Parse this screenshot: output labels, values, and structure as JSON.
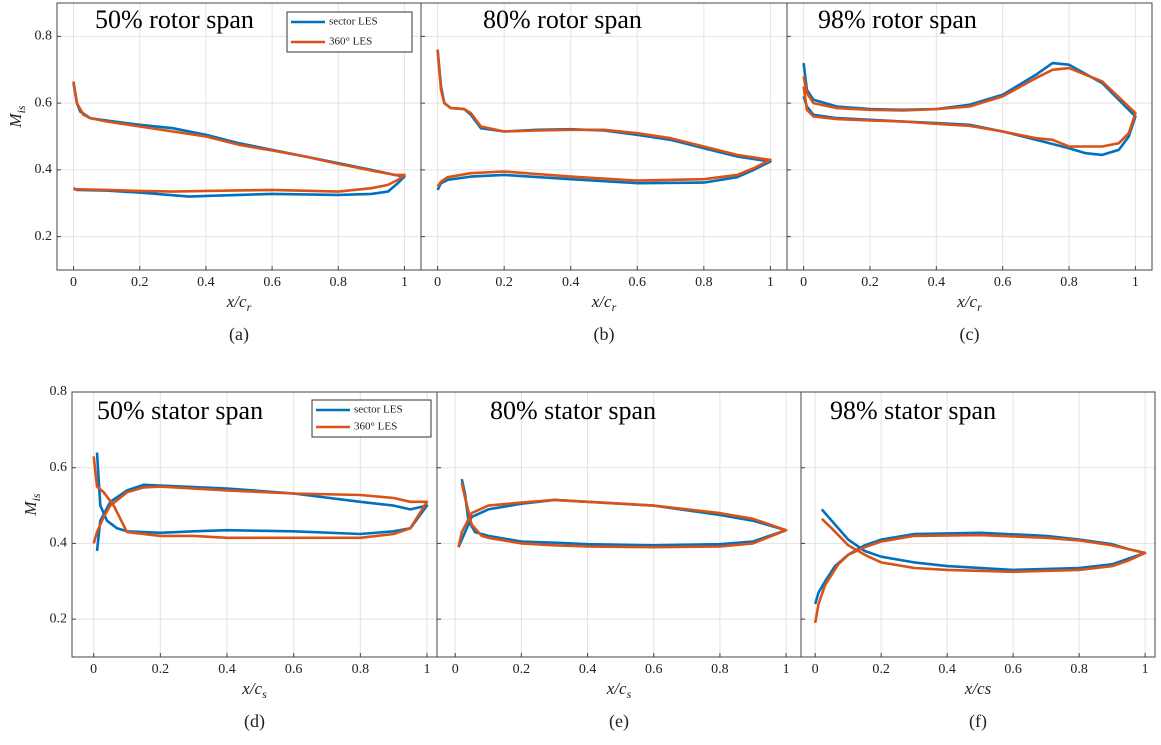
{
  "chart_data": [
    {
      "type": "line",
      "title": "50% rotor span",
      "xlabel": "x/c",
      "xlabel_sub": "r",
      "ylabel": "M",
      "ylabel_sub": "is",
      "caption": "(a)",
      "grid": true,
      "legend": "upper right",
      "xlim": [
        -0.05,
        1.05
      ],
      "ylim": [
        0.1,
        0.9
      ],
      "xticks": [
        0,
        0.2,
        0.4,
        0.6,
        0.8,
        1
      ],
      "yticks": [
        0.2,
        0.4,
        0.6,
        0.8
      ],
      "series": [
        {
          "name": "sector LES",
          "color": "#0072BD",
          "x": [
            0,
            0.01,
            0.02,
            0.05,
            0.1,
            0.2,
            0.3,
            0.4,
            0.5,
            0.6,
            0.7,
            0.8,
            0.9,
            0.97,
            1,
            0.98,
            0.95,
            0.9,
            0.8,
            0.6,
            0.4,
            0.35,
            0.2,
            0.1,
            0.01,
            0
          ],
          "values": [
            0.66,
            0.6,
            0.575,
            0.555,
            0.548,
            0.535,
            0.525,
            0.505,
            0.48,
            0.46,
            0.44,
            0.42,
            0.4,
            0.385,
            0.38,
            0.36,
            0.335,
            0.328,
            0.325,
            0.328,
            0.322,
            0.32,
            0.332,
            0.338,
            0.34,
            0.345
          ]
        },
        {
          "name": "360° LES",
          "color": "#D95319",
          "x": [
            0,
            0.01,
            0.03,
            0.05,
            0.1,
            0.2,
            0.3,
            0.4,
            0.5,
            0.6,
            0.7,
            0.8,
            0.9,
            0.97,
            1,
            0.98,
            0.95,
            0.9,
            0.8,
            0.6,
            0.4,
            0.3,
            0.2,
            0.1,
            0
          ],
          "values": [
            0.665,
            0.6,
            0.565,
            0.555,
            0.545,
            0.53,
            0.515,
            0.5,
            0.475,
            0.458,
            0.44,
            0.418,
            0.398,
            0.385,
            0.385,
            0.37,
            0.355,
            0.345,
            0.335,
            0.34,
            0.337,
            0.335,
            0.337,
            0.34,
            0.342
          ]
        }
      ]
    },
    {
      "type": "line",
      "title": "80% rotor span",
      "xlabel": "x/c",
      "xlabel_sub": "r",
      "caption": "(b)",
      "grid": true,
      "xlim": [
        -0.05,
        1.05
      ],
      "ylim": [
        0.1,
        0.9
      ],
      "xticks": [
        0,
        0.2,
        0.4,
        0.6,
        0.8,
        1
      ],
      "yticks": [
        0.2,
        0.4,
        0.6,
        0.8
      ],
      "series": [
        {
          "color": "#0072BD",
          "x": [
            0,
            0.01,
            0.02,
            0.04,
            0.08,
            0.1,
            0.13,
            0.2,
            0.3,
            0.4,
            0.5,
            0.6,
            0.7,
            0.8,
            0.9,
            1,
            0.95,
            0.9,
            0.8,
            0.6,
            0.4,
            0.2,
            0.1,
            0.03,
            0.01,
            0
          ],
          "values": [
            0.76,
            0.65,
            0.6,
            0.585,
            0.582,
            0.565,
            0.525,
            0.515,
            0.52,
            0.522,
            0.518,
            0.505,
            0.49,
            0.465,
            0.44,
            0.425,
            0.4,
            0.378,
            0.362,
            0.36,
            0.372,
            0.385,
            0.38,
            0.37,
            0.36,
            0.34
          ]
        },
        {
          "color": "#D95319",
          "x": [
            0,
            0.01,
            0.02,
            0.04,
            0.08,
            0.1,
            0.13,
            0.2,
            0.3,
            0.4,
            0.5,
            0.6,
            0.7,
            0.8,
            0.9,
            1,
            0.95,
            0.9,
            0.8,
            0.6,
            0.4,
            0.2,
            0.1,
            0.03,
            0.01,
            0
          ],
          "values": [
            0.76,
            0.64,
            0.6,
            0.585,
            0.582,
            0.57,
            0.53,
            0.515,
            0.518,
            0.52,
            0.52,
            0.51,
            0.495,
            0.47,
            0.445,
            0.43,
            0.405,
            0.385,
            0.372,
            0.368,
            0.38,
            0.395,
            0.39,
            0.378,
            0.365,
            0.35
          ]
        }
      ]
    },
    {
      "type": "line",
      "title": "98% rotor span",
      "xlabel": "x/c",
      "xlabel_sub": "r",
      "caption": "(c)",
      "grid": true,
      "xlim": [
        -0.05,
        1.05
      ],
      "ylim": [
        0.1,
        0.9
      ],
      "xticks": [
        0,
        0.2,
        0.4,
        0.6,
        0.8,
        1
      ],
      "yticks": [
        0.2,
        0.4,
        0.6,
        0.8
      ],
      "series": [
        {
          "color": "#0072BD",
          "x": [
            0,
            0.01,
            0.03,
            0.1,
            0.2,
            0.3,
            0.4,
            0.5,
            0.6,
            0.7,
            0.75,
            0.8,
            0.9,
            1,
            0.98,
            0.95,
            0.9,
            0.85,
            0.8,
            0.7,
            0.6,
            0.5,
            0.4,
            0.3,
            0.2,
            0.1,
            0.03,
            0.01,
            0
          ],
          "values": [
            0.72,
            0.64,
            0.61,
            0.59,
            0.582,
            0.58,
            0.582,
            0.595,
            0.625,
            0.685,
            0.72,
            0.715,
            0.66,
            0.56,
            0.5,
            0.46,
            0.445,
            0.45,
            0.465,
            0.49,
            0.515,
            0.535,
            0.54,
            0.545,
            0.55,
            0.555,
            0.565,
            0.59,
            0.62
          ]
        },
        {
          "color": "#D95319",
          "x": [
            0,
            0.01,
            0.03,
            0.1,
            0.2,
            0.3,
            0.4,
            0.5,
            0.6,
            0.7,
            0.75,
            0.8,
            0.9,
            1,
            0.98,
            0.95,
            0.9,
            0.8,
            0.75,
            0.7,
            0.6,
            0.5,
            0.4,
            0.3,
            0.2,
            0.1,
            0.03,
            0.01,
            0
          ],
          "values": [
            0.68,
            0.63,
            0.6,
            0.585,
            0.58,
            0.578,
            0.582,
            0.59,
            0.62,
            0.675,
            0.7,
            0.705,
            0.665,
            0.57,
            0.51,
            0.48,
            0.47,
            0.47,
            0.49,
            0.495,
            0.515,
            0.532,
            0.538,
            0.545,
            0.548,
            0.552,
            0.56,
            0.58,
            0.65
          ]
        }
      ]
    },
    {
      "type": "line",
      "title": "50% stator span",
      "xlabel": "x/c",
      "xlabel_sub": "s",
      "ylabel": "M",
      "ylabel_sub": "is",
      "caption": "(d)",
      "grid": true,
      "legend": "upper right",
      "xlim": [
        -0.065,
        1.03
      ],
      "ylim": [
        0.1,
        0.8
      ],
      "xticks": [
        0,
        0.2,
        0.4,
        0.6,
        0.8,
        1
      ],
      "yticks": [
        0.2,
        0.4,
        0.6,
        0.8
      ],
      "series": [
        {
          "name": "sector LES",
          "color": "#0072BD",
          "x": [
            0.01,
            0.02,
            0.04,
            0.07,
            0.1,
            0.2,
            0.3,
            0.4,
            0.6,
            0.8,
            0.9,
            0.95,
            1,
            0.95,
            0.9,
            0.8,
            0.6,
            0.4,
            0.2,
            0.15,
            0.1,
            0.05,
            0.02,
            0.01
          ],
          "values": [
            0.64,
            0.5,
            0.46,
            0.44,
            0.432,
            0.428,
            0.432,
            0.435,
            0.432,
            0.425,
            0.432,
            0.44,
            0.5,
            0.49,
            0.5,
            0.51,
            0.532,
            0.545,
            0.553,
            0.555,
            0.54,
            0.51,
            0.46,
            0.38
          ]
        },
        {
          "name": "360° LES",
          "color": "#D95319",
          "x": [
            0,
            0.01,
            0.03,
            0.06,
            0.1,
            0.2,
            0.3,
            0.4,
            0.6,
            0.8,
            0.9,
            0.95,
            1,
            0.95,
            0.9,
            0.8,
            0.6,
            0.4,
            0.2,
            0.15,
            0.1,
            0.05,
            0.03,
            0.01,
            0
          ],
          "values": [
            0.63,
            0.55,
            0.535,
            0.5,
            0.43,
            0.42,
            0.42,
            0.415,
            0.415,
            0.415,
            0.425,
            0.44,
            0.51,
            0.51,
            0.52,
            0.528,
            0.532,
            0.54,
            0.55,
            0.548,
            0.535,
            0.5,
            0.47,
            0.43,
            0.4
          ]
        }
      ]
    },
    {
      "type": "line",
      "title": "80% stator span",
      "xlabel": "x/c",
      "xlabel_sub": "s",
      "caption": "(e)",
      "grid": true,
      "xlim": [
        -0.055,
        1.045
      ],
      "ylim": [
        0.1,
        0.8
      ],
      "xticks": [
        0,
        0.2,
        0.4,
        0.6,
        0.8,
        1
      ],
      "yticks": [
        0.2,
        0.4,
        0.6,
        0.8
      ],
      "series": [
        {
          "color": "#0072BD",
          "x": [
            0.02,
            0.03,
            0.04,
            0.06,
            0.1,
            0.2,
            0.3,
            0.4,
            0.6,
            0.8,
            0.9,
            1,
            0.9,
            0.8,
            0.6,
            0.4,
            0.3,
            0.2,
            0.1,
            0.05,
            0.03,
            0.01
          ],
          "values": [
            0.57,
            0.53,
            0.46,
            0.43,
            0.42,
            0.405,
            0.402,
            0.398,
            0.395,
            0.398,
            0.405,
            0.435,
            0.46,
            0.475,
            0.5,
            0.51,
            0.515,
            0.505,
            0.49,
            0.47,
            0.43,
            0.39
          ]
        },
        {
          "color": "#D95319",
          "x": [
            0.02,
            0.03,
            0.05,
            0.08,
            0.1,
            0.2,
            0.3,
            0.4,
            0.6,
            0.8,
            0.9,
            1,
            0.9,
            0.8,
            0.6,
            0.4,
            0.3,
            0.2,
            0.1,
            0.05,
            0.02,
            0.01
          ],
          "values": [
            0.56,
            0.52,
            0.45,
            0.42,
            0.415,
            0.4,
            0.395,
            0.392,
            0.39,
            0.392,
            0.4,
            0.435,
            0.465,
            0.48,
            0.5,
            0.51,
            0.515,
            0.508,
            0.5,
            0.48,
            0.43,
            0.39
          ]
        }
      ]
    },
    {
      "type": "line",
      "title": "98% stator span",
      "xlabel": "x/cs",
      "caption": "(f)",
      "grid": true,
      "xlim": [
        -0.043,
        1.03
      ],
      "ylim": [
        0.1,
        0.8
      ],
      "xticks": [
        0,
        0.2,
        0.4,
        0.6,
        0.8,
        1
      ],
      "yticks": [
        0.2,
        0.4,
        0.6,
        0.8
      ],
      "series": [
        {
          "color": "#0072BD",
          "x": [
            0,
            0.01,
            0.03,
            0.06,
            0.1,
            0.15,
            0.2,
            0.3,
            0.5,
            0.7,
            0.8,
            0.9,
            0.95,
            1,
            0.95,
            0.9,
            0.8,
            0.6,
            0.4,
            0.3,
            0.2,
            0.15,
            0.1,
            0.05,
            0.02
          ],
          "values": [
            0.24,
            0.27,
            0.3,
            0.34,
            0.37,
            0.395,
            0.41,
            0.425,
            0.428,
            0.42,
            0.41,
            0.398,
            0.385,
            0.375,
            0.36,
            0.345,
            0.335,
            0.33,
            0.34,
            0.35,
            0.365,
            0.38,
            0.41,
            0.46,
            0.49
          ]
        },
        {
          "color": "#D95319",
          "x": [
            0,
            0.01,
            0.03,
            0.07,
            0.1,
            0.15,
            0.2,
            0.3,
            0.5,
            0.7,
            0.8,
            0.9,
            0.95,
            1,
            0.95,
            0.9,
            0.8,
            0.6,
            0.4,
            0.3,
            0.2,
            0.15,
            0.1,
            0.05,
            0.02
          ],
          "values": [
            0.19,
            0.24,
            0.29,
            0.345,
            0.37,
            0.39,
            0.405,
            0.42,
            0.422,
            0.415,
            0.408,
            0.395,
            0.385,
            0.375,
            0.355,
            0.34,
            0.33,
            0.325,
            0.33,
            0.335,
            0.35,
            0.37,
            0.395,
            0.44,
            0.465
          ]
        }
      ]
    }
  ]
}
